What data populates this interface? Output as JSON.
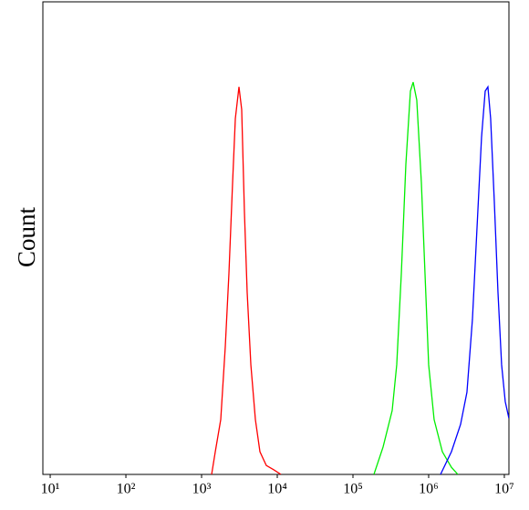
{
  "chart_data": {
    "type": "line",
    "ylabel": "Count",
    "xscale": "log",
    "xlim": [
      8,
      11500000
    ],
    "ylim": [
      0,
      100
    ],
    "xticks": [
      {
        "value": 10,
        "label": "10¹"
      },
      {
        "value": 100,
        "label": "10²"
      },
      {
        "value": 1000,
        "label": "10³"
      },
      {
        "value": 10000,
        "label": "10⁴"
      },
      {
        "value": 100000,
        "label": "10⁵"
      },
      {
        "value": 1000000,
        "label": "10⁶"
      },
      {
        "value": 10000000,
        "label": "10⁷"
      }
    ],
    "series": [
      {
        "color": "#ff0000",
        "x": [
          1358,
          1517,
          1791,
          2056,
          2297,
          2570,
          2793,
          3119,
          3388,
          3681,
          4000,
          4477,
          5140,
          5902,
          7161,
          8950,
          11170
        ],
        "values": [
          0,
          4.8,
          11.6,
          27,
          42.5,
          61.8,
          75.3,
          82,
          77.2,
          55.6,
          38.6,
          23.2,
          11.6,
          4.8,
          1.9,
          1,
          0
        ]
      },
      {
        "color": "#00ee00",
        "x": [
          189200,
          250000,
          329600,
          378700,
          435500,
          500000,
          574100,
          624000,
          696600,
          801000,
          895000,
          1000000,
          1181000,
          1517000,
          2000000,
          2432000
        ],
        "values": [
          0,
          5.8,
          13.5,
          23.2,
          42.5,
          65.6,
          81.1,
          83,
          79.2,
          61.8,
          42.5,
          23.2,
          11.6,
          4.8,
          1.5,
          0
        ]
      },
      {
        "color": "#0000ff",
        "x": [
          1435000,
          2000000,
          2642000,
          3206000,
          3787000,
          4352000,
          5000000,
          5585000,
          6067000,
          6592000,
          7362000,
          8236000,
          9204000,
          10280000,
          11480000
        ],
        "values": [
          0,
          4.8,
          10.6,
          17.4,
          32.8,
          52.1,
          71.4,
          81.1,
          82,
          75.3,
          57.9,
          38.6,
          23.2,
          15.4,
          11.9
        ]
      }
    ]
  }
}
